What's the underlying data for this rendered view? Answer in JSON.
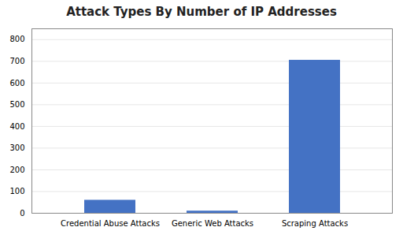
{
  "chart_data": {
    "type": "bar",
    "title": "Attack Types By Number of IP Addresses",
    "categories": [
      "Credential Abuse Attacks",
      "Generic Web Attacks",
      "Scraping Attacks"
    ],
    "values": [
      60,
      10,
      705
    ],
    "color": "#4472C4",
    "ylim": [
      0,
      850
    ],
    "yticks": [
      0,
      100,
      200,
      300,
      400,
      500,
      600,
      700,
      800
    ],
    "grid": true
  }
}
